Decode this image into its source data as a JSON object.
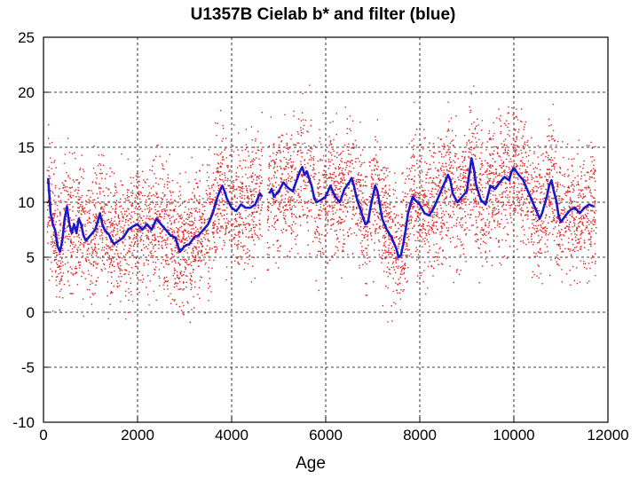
{
  "chart_data": {
    "type": "scatter",
    "title": "U1357B Cielab b* and filter (blue)",
    "xlabel": "Age",
    "ylabel": "",
    "xlim": [
      0,
      12000
    ],
    "ylim": [
      -10,
      25
    ],
    "x_ticks": [
      0,
      2000,
      4000,
      6000,
      8000,
      10000,
      12000
    ],
    "y_ticks": [
      -10,
      -5,
      0,
      5,
      10,
      15,
      20,
      25
    ],
    "grid": "dashed",
    "legend": "none",
    "series": [
      {
        "kind": "scatter",
        "color": "#e02020",
        "x_range": [
          80,
          11750
        ],
        "gap": [
          4650,
          4760
        ],
        "approx_points": 6000,
        "spread_note": "values scattered roughly +/-8 around the filtered curve, occasionally reaching -9 and 22"
      },
      {
        "kind": "line",
        "color": "#1a1acc",
        "points": [
          [
            100,
            12.2
          ],
          [
            150,
            9.0
          ],
          [
            200,
            8.0
          ],
          [
            250,
            7.4
          ],
          [
            300,
            6.0
          ],
          [
            350,
            5.5
          ],
          [
            400,
            6.5
          ],
          [
            450,
            8.5
          ],
          [
            500,
            9.6
          ],
          [
            550,
            8.0
          ],
          [
            600,
            7.2
          ],
          [
            650,
            8.0
          ],
          [
            700,
            7.2
          ],
          [
            750,
            8.5
          ],
          [
            800,
            8.0
          ],
          [
            850,
            7.0
          ],
          [
            900,
            6.5
          ],
          [
            1000,
            7.0
          ],
          [
            1100,
            7.5
          ],
          [
            1150,
            8.2
          ],
          [
            1200,
            9.0
          ],
          [
            1250,
            8.0
          ],
          [
            1300,
            7.5
          ],
          [
            1400,
            7.0
          ],
          [
            1450,
            6.5
          ],
          [
            1500,
            6.2
          ],
          [
            1600,
            6.5
          ],
          [
            1700,
            6.8
          ],
          [
            1800,
            7.5
          ],
          [
            1900,
            7.8
          ],
          [
            2000,
            8.0
          ],
          [
            2100,
            7.5
          ],
          [
            2200,
            8.0
          ],
          [
            2300,
            7.5
          ],
          [
            2400,
            8.5
          ],
          [
            2500,
            8.0
          ],
          [
            2600,
            7.5
          ],
          [
            2700,
            7.0
          ],
          [
            2800,
            6.8
          ],
          [
            2900,
            5.5
          ],
          [
            3000,
            6.0
          ],
          [
            3100,
            6.2
          ],
          [
            3200,
            6.8
          ],
          [
            3300,
            7.0
          ],
          [
            3400,
            7.5
          ],
          [
            3500,
            8.0
          ],
          [
            3600,
            9.0
          ],
          [
            3700,
            10.5
          ],
          [
            3800,
            11.5
          ],
          [
            3850,
            11.0
          ],
          [
            3900,
            10.3
          ],
          [
            4000,
            9.5
          ],
          [
            4100,
            9.2
          ],
          [
            4200,
            9.8
          ],
          [
            4300,
            9.5
          ],
          [
            4400,
            9.5
          ],
          [
            4500,
            9.8
          ],
          [
            4600,
            10.8
          ],
          [
            4650,
            10.5
          ],
          null,
          [
            4800,
            10.8
          ],
          [
            4850,
            11.2
          ],
          [
            4900,
            10.5
          ],
          [
            5000,
            11.0
          ],
          [
            5100,
            11.8
          ],
          [
            5200,
            11.3
          ],
          [
            5300,
            11.0
          ],
          [
            5400,
            12.2
          ],
          [
            5450,
            12.8
          ],
          [
            5500,
            13.2
          ],
          [
            5550,
            12.5
          ],
          [
            5600,
            12.8
          ],
          [
            5700,
            11.5
          ],
          [
            5750,
            10.5
          ],
          [
            5800,
            10.0
          ],
          [
            5900,
            10.2
          ],
          [
            6000,
            10.5
          ],
          [
            6100,
            11.5
          ],
          [
            6200,
            10.5
          ],
          [
            6300,
            10.0
          ],
          [
            6400,
            11.2
          ],
          [
            6500,
            11.8
          ],
          [
            6550,
            12.2
          ],
          [
            6600,
            11.5
          ],
          [
            6650,
            10.5
          ],
          [
            6700,
            9.8
          ],
          [
            6750,
            9.2
          ],
          [
            6800,
            8.5
          ],
          [
            6850,
            8.0
          ],
          [
            6900,
            8.2
          ],
          [
            6950,
            9.5
          ],
          [
            7000,
            10.5
          ],
          [
            7050,
            11.5
          ],
          [
            7100,
            11.0
          ],
          [
            7150,
            9.8
          ],
          [
            7200,
            8.5
          ],
          [
            7300,
            7.5
          ],
          [
            7400,
            6.8
          ],
          [
            7500,
            5.8
          ],
          [
            7550,
            5.0
          ],
          [
            7600,
            5.2
          ],
          [
            7650,
            6.2
          ],
          [
            7700,
            7.5
          ],
          [
            7750,
            9.0
          ],
          [
            7800,
            9.8
          ],
          [
            7850,
            10.5
          ],
          [
            7900,
            10.2
          ],
          [
            8000,
            9.8
          ],
          [
            8100,
            9.0
          ],
          [
            8200,
            8.8
          ],
          [
            8300,
            9.5
          ],
          [
            8400,
            10.5
          ],
          [
            8500,
            11.5
          ],
          [
            8600,
            12.5
          ],
          [
            8650,
            12.0
          ],
          [
            8700,
            10.8
          ],
          [
            8800,
            10.0
          ],
          [
            8900,
            10.5
          ],
          [
            9000,
            11.0
          ],
          [
            9050,
            12.5
          ],
          [
            9100,
            14.0
          ],
          [
            9150,
            13.0
          ],
          [
            9200,
            11.5
          ],
          [
            9300,
            10.2
          ],
          [
            9400,
            9.8
          ],
          [
            9500,
            11.5
          ],
          [
            9600,
            11.2
          ],
          [
            9700,
            11.8
          ],
          [
            9800,
            12.3
          ],
          [
            9900,
            12.0
          ],
          [
            9950,
            12.8
          ],
          [
            10000,
            13.1
          ],
          [
            10100,
            12.5
          ],
          [
            10200,
            12.0
          ],
          [
            10300,
            11.0
          ],
          [
            10400,
            10.0
          ],
          [
            10500,
            9.0
          ],
          [
            10550,
            8.5
          ],
          [
            10600,
            9.0
          ],
          [
            10700,
            10.5
          ],
          [
            10750,
            11.5
          ],
          [
            10800,
            12.0
          ],
          [
            10850,
            11.0
          ],
          [
            10900,
            10.2
          ],
          [
            10950,
            8.8
          ],
          [
            11000,
            8.2
          ],
          [
            11100,
            8.8
          ],
          [
            11200,
            9.3
          ],
          [
            11300,
            9.5
          ],
          [
            11400,
            9.0
          ],
          [
            11500,
            9.5
          ],
          [
            11600,
            9.8
          ],
          [
            11700,
            9.6
          ]
        ]
      }
    ]
  }
}
